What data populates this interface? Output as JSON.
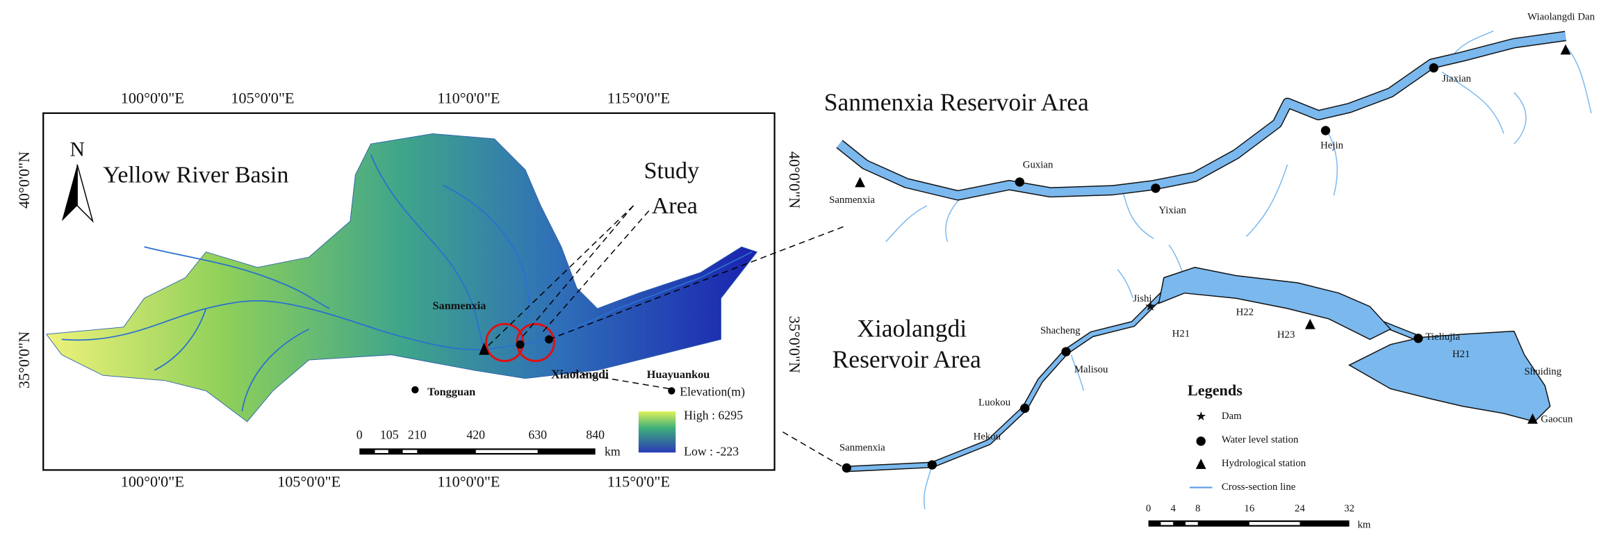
{
  "left_map": {
    "title": "Yellow River Basin",
    "north": "N",
    "study_area": [
      "Study",
      "Area"
    ],
    "lon_labels": [
      "100°0'0\"E",
      "105°0'0\"E",
      "110°0'0\"E",
      "115°0'0\"E"
    ],
    "lat_labels": [
      "40°0'0\"N",
      "35°0'0\"N"
    ],
    "places": [
      "Sanmenxia",
      "Xiaolangdi",
      "Huayuankou",
      "Tongguan"
    ],
    "elevation": {
      "title": "Elevation(m)",
      "high": "High : 6295",
      "low": "Low : -223"
    },
    "scale_bar": {
      "labels": [
        "0",
        "105",
        "210",
        "420",
        "630",
        "840"
      ],
      "unit": "km"
    }
  },
  "sanmenxia_panel": {
    "title": "Sanmenxia Reservoir Area",
    "stations": [
      "Wiaolangdi Dan",
      "Jiaxian",
      "Hejin",
      "Guxian",
      "Yixian",
      "Sanmenxia"
    ]
  },
  "xiaolangdi_panel": {
    "title": [
      "Xiaolangdi",
      "Reservoir Area"
    ],
    "labels": [
      "Jishi",
      "H22",
      "H21",
      "H23",
      "Tieliujia",
      "H21",
      "Shuiding",
      "Gaocun",
      "Shacheng",
      "Malisou",
      "Luokou",
      "Hekou",
      "Sanmenxia"
    ],
    "legend": {
      "title": "Legends",
      "items": [
        "Dam",
        "Water level station",
        "Hydrological station",
        "Cross-section line"
      ]
    },
    "scale_bar": {
      "labels": [
        "0",
        "4",
        "8",
        "16",
        "24",
        "32"
      ],
      "unit": "km"
    }
  }
}
